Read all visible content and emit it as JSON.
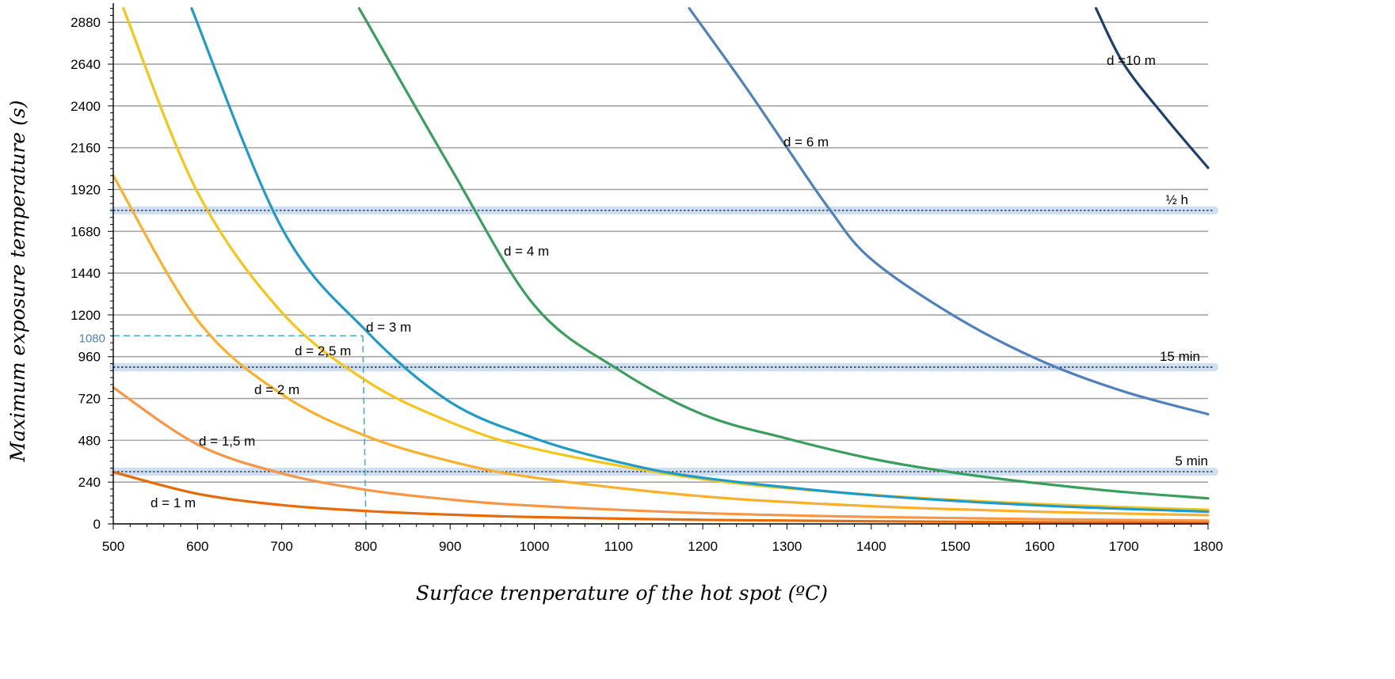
{
  "chart_data": {
    "type": "line",
    "xlabel": "Surface trenperature of the hot spot (ºC)",
    "ylabel": "Maximum exposure temperature (s)",
    "xlim": [
      500,
      1800
    ],
    "ylim": [
      0,
      2990
    ],
    "x_ticks": [
      500,
      600,
      700,
      800,
      900,
      1000,
      1100,
      1200,
      1300,
      1400,
      1500,
      1600,
      1700,
      1800
    ],
    "y_ticks": [
      0,
      240,
      480,
      720,
      960,
      1200,
      1440,
      1680,
      1920,
      2160,
      2400,
      2640,
      2880
    ],
    "grid": "horizontal",
    "colors": {
      "grid": "#a6a6a6",
      "axis": "#000000",
      "reference_band": "#c5d9f1",
      "marker": "#4bacc6",
      "marker_label": "#4f81bd"
    },
    "series": [
      {
        "name": "d = 1 m",
        "label": "d = 1 m",
        "color": "#e46c0a",
        "points": [
          [
            500,
            298
          ],
          [
            600,
            173
          ],
          [
            700,
            108
          ],
          [
            800,
            74
          ],
          [
            900,
            53
          ],
          [
            1000,
            39
          ],
          [
            1200,
            23
          ],
          [
            1400,
            15
          ],
          [
            1600,
            10
          ],
          [
            1800,
            7
          ]
        ]
      },
      {
        "name": "d = 1,5 m",
        "label": "d = 1,5 m",
        "color": "#f79646",
        "points": [
          [
            500,
            783
          ],
          [
            600,
            456
          ],
          [
            700,
            290
          ],
          [
            800,
            196
          ],
          [
            900,
            140
          ],
          [
            1000,
            104
          ],
          [
            1200,
            62
          ],
          [
            1400,
            40
          ],
          [
            1600,
            27
          ],
          [
            1800,
            19
          ]
        ]
      },
      {
        "name": "d = 2 m",
        "label": "d = 2 m",
        "color": "#fbb02d",
        "points": [
          [
            500,
            2000
          ],
          [
            600,
            1170
          ],
          [
            700,
            745
          ],
          [
            800,
            505
          ],
          [
            900,
            360
          ],
          [
            1000,
            266
          ],
          [
            1200,
            158
          ],
          [
            1400,
            102
          ],
          [
            1600,
            70
          ],
          [
            1800,
            50
          ]
        ]
      },
      {
        "name": "d = 2,5 m",
        "label": "d = 2,5 m",
        "color": "#f5c518",
        "points": [
          [
            512,
            2960
          ],
          [
            600,
            1905
          ],
          [
            700,
            1215
          ],
          [
            800,
            823
          ],
          [
            900,
            585
          ],
          [
            1000,
            432
          ],
          [
            1200,
            257
          ],
          [
            1400,
            167
          ],
          [
            1600,
            114
          ],
          [
            1800,
            81
          ]
        ]
      },
      {
        "name": "d = 3 m",
        "label": "d = 3 m",
        "color": "#1f9bc8",
        "points": [
          [
            593,
            2960
          ],
          [
            700,
            1700
          ],
          [
            800,
            1110
          ],
          [
            900,
            700
          ],
          [
            1000,
            492
          ],
          [
            1100,
            355
          ],
          [
            1200,
            265
          ],
          [
            1400,
            165
          ],
          [
            1600,
            106
          ],
          [
            1800,
            70
          ]
        ]
      },
      {
        "name": "d = 4 m",
        "label": "d = 4 m",
        "color": "#3a9e5c",
        "points": [
          [
            792,
            2960
          ],
          [
            900,
            2050
          ],
          [
            1000,
            1255
          ],
          [
            1100,
            885
          ],
          [
            1200,
            628
          ],
          [
            1300,
            490
          ],
          [
            1400,
            375
          ],
          [
            1500,
            293
          ],
          [
            1600,
            232
          ],
          [
            1700,
            183
          ],
          [
            1800,
            147
          ]
        ]
      },
      {
        "name": "d = 6 m",
        "label": "d = 6 m",
        "color": "#4f81bd",
        "points": [
          [
            1184,
            2960
          ],
          [
            1250,
            2515
          ],
          [
            1300,
            2160
          ],
          [
            1350,
            1810
          ],
          [
            1400,
            1520
          ],
          [
            1500,
            1190
          ],
          [
            1600,
            940
          ],
          [
            1700,
            760
          ],
          [
            1800,
            630
          ]
        ]
      },
      {
        "name": "d =10 m",
        "label": "d =10 m",
        "color": "#1f3f6e",
        "points": [
          [
            1667,
            2960
          ],
          [
            1700,
            2640
          ],
          [
            1750,
            2330
          ],
          [
            1800,
            2045
          ]
        ]
      }
    ],
    "reference_lines": [
      {
        "label": "½ h",
        "value": 1800
      },
      {
        "label": "15 min",
        "value": 900
      },
      {
        "label": "5 min",
        "value": 300
      }
    ],
    "marker": {
      "x": 800,
      "y": 1080,
      "label": "1080"
    }
  }
}
